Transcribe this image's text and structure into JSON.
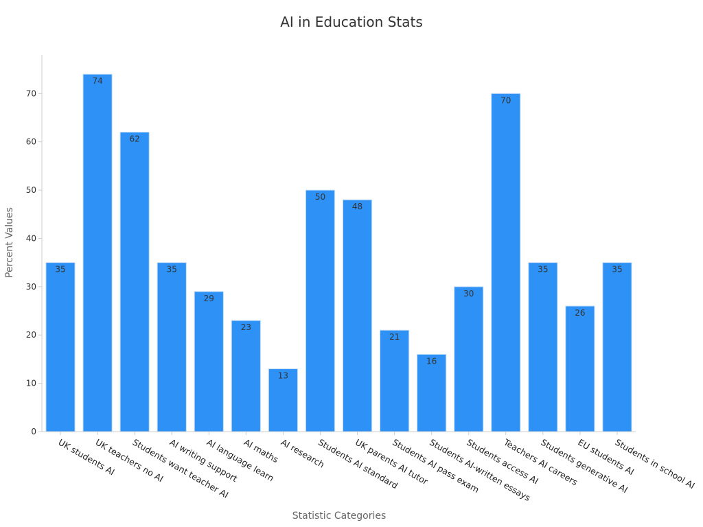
{
  "chart_data": {
    "type": "bar",
    "title": "AI in Education Stats",
    "xlabel": "Statistic Categories",
    "ylabel": "Percent Values",
    "categories": [
      "UK students AI",
      "UK teachers no AI",
      "Students want teacher AI",
      "AI writing support",
      "AI language learn",
      "AI maths",
      "AI research",
      "Students AI standard",
      "UK parents AI tutor",
      "Students AI pass exam",
      "Students AI-written essays",
      "Students access AI",
      "Teachers AI careers",
      "Students generative AI",
      "EU students AI",
      "Students in school AI"
    ],
    "values": [
      35,
      74,
      62,
      35,
      29,
      23,
      13,
      50,
      48,
      21,
      16,
      30,
      70,
      35,
      26,
      35
    ],
    "ylim": [
      0,
      78
    ],
    "yticks": [
      0,
      10,
      20,
      30,
      40,
      50,
      60,
      70
    ],
    "grid": false,
    "bar_color": "#2d91f5",
    "bar_edge_color": "#c5dcf5"
  }
}
